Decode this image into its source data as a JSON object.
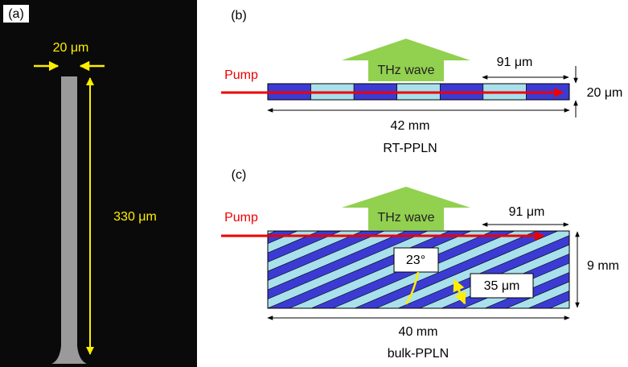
{
  "panel_a": {
    "label": "(a)",
    "width_label": "20 μm",
    "length_label": "330 μm"
  },
  "panel_b": {
    "label": "(b)",
    "pump": "Pump",
    "wave": "THz wave",
    "period": "91 μm",
    "thickness": "20 μm",
    "length": "42 mm",
    "caption": "RT-PPLN"
  },
  "panel_c": {
    "label": "(c)",
    "pump": "Pump",
    "wave": "THz wave",
    "period": "91 μm",
    "angle": "23°",
    "stripe": "35 μm",
    "thickness": "9 mm",
    "length": "40 mm",
    "caption": "bulk-PPLN"
  }
}
